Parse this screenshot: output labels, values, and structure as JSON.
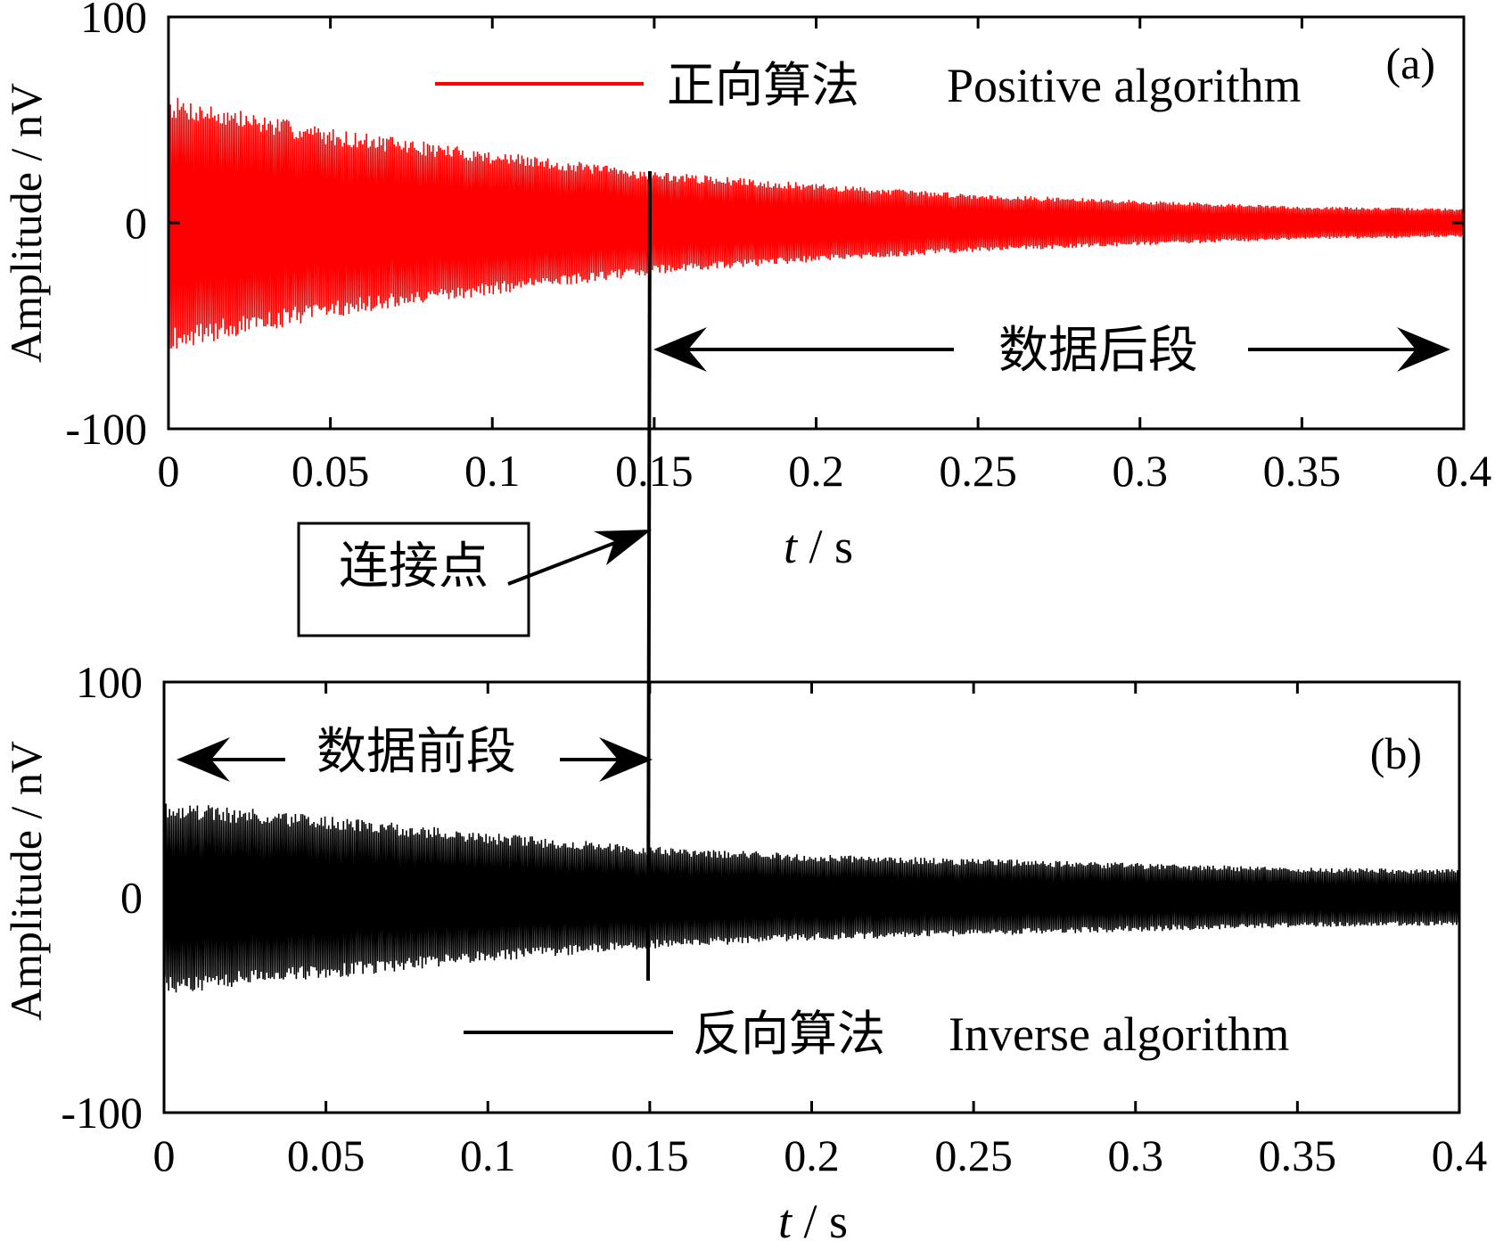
{
  "chart_data": [
    {
      "id": "a",
      "type": "line",
      "panel_label": "(a)",
      "xlabel_t": "t",
      "xlabel_unit": " / s",
      "ylabel": "Amplitude / nV",
      "xlim": [
        0,
        0.4
      ],
      "ylim": [
        -100,
        100
      ],
      "x_ticks": [
        0,
        0.05,
        0.1,
        0.15,
        0.2,
        0.25,
        0.3,
        0.35,
        0.4
      ],
      "x_tick_labels": [
        "0",
        "0.05",
        "0.1",
        "0.15",
        "0.2",
        "0.25",
        "0.3",
        "0.35",
        "0.4"
      ],
      "y_ticks": [
        100,
        0,
        -100
      ],
      "y_tick_labels": [
        "100",
        "0",
        "-100"
      ],
      "legend_position": "top-right",
      "series": [
        {
          "name_cn": "正向算法",
          "name_en": "Positive algorithm",
          "color": "#ff0000",
          "envelope": {
            "t": [
              0,
              0.05,
              0.1,
              0.15,
              0.2,
              0.25,
              0.3,
              0.35,
              0.4
            ],
            "amplitude": [
              62,
              46,
              35,
              25,
              19,
              14,
              11,
              8,
              7
            ]
          }
        }
      ],
      "annotation_label": "数据后段",
      "annotation_range": [
        0.15,
        0.4
      ]
    },
    {
      "id": "b",
      "type": "line",
      "panel_label": "(b)",
      "xlabel_t": "t",
      "xlabel_unit": " / s",
      "ylabel": "Amplitude / nV",
      "xlim": [
        0,
        0.4
      ],
      "ylim": [
        -100,
        100
      ],
      "x_ticks": [
        0,
        0.05,
        0.1,
        0.15,
        0.2,
        0.25,
        0.3,
        0.35,
        0.4
      ],
      "x_tick_labels": [
        "0",
        "0.05",
        "0.1",
        "0.15",
        "0.2",
        "0.25",
        "0.3",
        "0.35",
        "0.4"
      ],
      "y_ticks": [
        100,
        0,
        -100
      ],
      "y_tick_labels": [
        "100",
        "0",
        "-100"
      ],
      "legend_position": "bottom-right",
      "series": [
        {
          "name_cn": "反向算法",
          "name_en": "Inverse algorithm",
          "color": "#000000",
          "envelope": {
            "t": [
              0,
              0.05,
              0.1,
              0.15,
              0.2,
              0.25,
              0.3,
              0.35,
              0.4
            ],
            "amplitude": [
              45,
              38,
              30,
              24,
              20,
              18,
              16,
              14,
              13
            ]
          }
        }
      ],
      "annotation_label": "数据前段",
      "annotation_range": [
        0,
        0.15
      ]
    }
  ],
  "connection": {
    "label": "连接点",
    "t": 0.15
  }
}
